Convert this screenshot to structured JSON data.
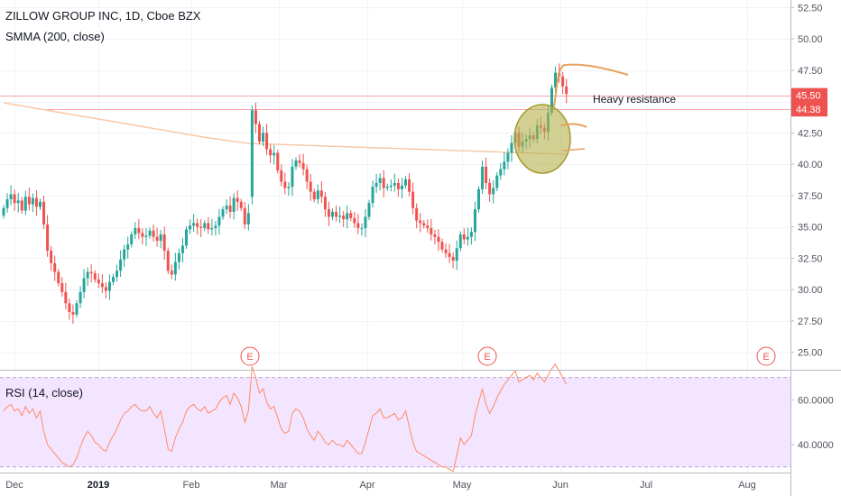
{
  "header": {
    "symbol_title": "ZILLOW GROUP INC, 1D, Cboe BZX",
    "indicator_label": "SMMA (200, close)",
    "rsi_label": "RSI (14, close)"
  },
  "colors": {
    "up": "#26a69a",
    "down": "#ef5350",
    "smma": "#f7c9a8",
    "resistance": "#f5a3a6",
    "rsi_line": "#ff8a65",
    "rsi_band": "#f3e5ff",
    "price_tag_upper": "#ef5350",
    "price_tag_lower": "#ef5350",
    "drawing": "#e8a25c",
    "highlight_circle": "#b5b04d",
    "earnings": "#f05350"
  },
  "chart_data": [
    {
      "type": "candlestick",
      "title": "ZILLOW GROUP INC, 1D, Cboe BZX",
      "ylim": [
        23.6,
        53.1
      ],
      "y_ticks": [
        "52.50",
        "50.00",
        "47.50",
        "45.00",
        "42.50",
        "40.00",
        "37.50",
        "35.00",
        "32.50",
        "30.00",
        "27.50",
        "25.00"
      ],
      "x_ticks": [
        "Dec",
        "2019",
        "Feb",
        "Mar",
        "Apr",
        "May",
        "Jun",
        "Jul",
        "Aug"
      ],
      "price_tags": [
        "45.50",
        "44.38"
      ],
      "annotations": [
        "Heavy resistance"
      ],
      "earnings_markers": [
        "E",
        "E",
        "E"
      ],
      "series": [
        {
          "name": "price",
          "close": [
            36.5,
            37.2,
            37.6,
            36.9,
            37.1,
            36.3,
            37.4,
            36.8,
            37.3,
            36.6,
            37.0,
            35.2,
            33.1,
            32.1,
            31.4,
            30.5,
            29.8,
            28.9,
            28.2,
            28.0,
            28.9,
            29.8,
            30.9,
            31.4,
            31.3,
            30.8,
            30.5,
            30.2,
            29.9,
            30.6,
            31.0,
            31.5,
            32.4,
            33.2,
            33.6,
            34.4,
            34.9,
            34.5,
            34.2,
            34.3,
            34.7,
            34.2,
            33.9,
            34.4,
            33.1,
            31.5,
            31.2,
            32.2,
            32.9,
            33.5,
            34.8,
            35.1,
            35.3,
            35.0,
            34.9,
            35.3,
            34.8,
            34.9,
            35.1,
            35.8,
            36.4,
            36.7,
            36.2,
            37.3,
            37.0,
            36.5,
            35.2,
            36.1,
            44.3,
            43.2,
            41.8,
            42.5,
            41.2,
            40.7,
            40.9,
            39.5,
            38.6,
            38.1,
            38.2,
            39.8,
            40.3,
            40.1,
            39.6,
            38.6,
            37.8,
            37.2,
            37.9,
            37.4,
            36.4,
            35.8,
            36.2,
            35.8,
            35.9,
            35.6,
            36.1,
            35.7,
            35.3,
            34.9,
            34.9,
            35.8,
            36.9,
            38.2,
            38.5,
            38.9,
            38.1,
            38.2,
            38.3,
            38.5,
            38.0,
            38.3,
            38.8,
            37.8,
            36.5,
            35.5,
            35.3,
            35.1,
            34.9,
            34.4,
            34.2,
            33.8,
            33.2,
            32.9,
            32.6,
            32.3,
            33.3,
            34.4,
            34.0,
            34.2,
            34.6,
            36.4,
            38.0,
            39.8,
            38.5,
            37.6,
            38.1,
            39.1,
            39.6,
            40.2,
            40.9,
            41.7,
            42.5,
            41.4,
            41.8,
            42.0,
            42.3,
            42.0,
            43.1,
            42.9,
            42.6,
            44.1,
            46.1,
            47.3,
            47.0,
            46.2,
            45.6
          ],
          "open": [
            35.9,
            36.5,
            37.2,
            37.6,
            36.9,
            37.1,
            36.3,
            37.4,
            36.8,
            37.3,
            36.6,
            37.0,
            35.2,
            33.1,
            32.1,
            31.4,
            30.5,
            29.8,
            28.9,
            28.2,
            28.0,
            28.9,
            29.8,
            30.9,
            31.4,
            31.3,
            30.8,
            30.5,
            30.2,
            29.9,
            30.6,
            31.0,
            31.5,
            32.4,
            33.2,
            33.6,
            34.4,
            34.9,
            34.5,
            34.2,
            34.3,
            34.7,
            34.2,
            33.9,
            34.4,
            33.1,
            31.5,
            31.2,
            32.2,
            32.9,
            33.5,
            34.8,
            35.1,
            35.3,
            35.0,
            34.9,
            35.3,
            34.8,
            34.9,
            35.1,
            35.8,
            36.4,
            36.7,
            36.2,
            37.3,
            37.0,
            36.5,
            35.2,
            37.4,
            44.3,
            43.2,
            41.8,
            42.5,
            41.2,
            40.7,
            40.9,
            39.5,
            38.6,
            38.1,
            38.2,
            39.8,
            40.3,
            40.1,
            39.6,
            38.6,
            37.8,
            37.2,
            37.9,
            37.4,
            36.4,
            35.8,
            36.2,
            35.8,
            35.9,
            35.6,
            36.1,
            35.7,
            35.3,
            34.9,
            34.9,
            35.8,
            36.9,
            38.2,
            38.5,
            38.9,
            38.1,
            38.2,
            38.3,
            38.5,
            38.0,
            38.3,
            38.8,
            37.8,
            36.5,
            35.5,
            35.3,
            35.1,
            34.9,
            34.4,
            34.2,
            33.8,
            33.2,
            32.9,
            32.6,
            32.3,
            33.3,
            34.4,
            34.0,
            34.2,
            34.6,
            36.4,
            38.0,
            39.8,
            38.5,
            37.6,
            38.1,
            39.1,
            39.6,
            40.2,
            40.9,
            41.7,
            42.5,
            41.4,
            41.8,
            42.0,
            42.3,
            42.0,
            43.1,
            42.9,
            42.6,
            44.1,
            46.1,
            47.3,
            47.0,
            46.2
          ],
          "smma": [
            44.9,
            44.85,
            44.8,
            44.75,
            44.7,
            44.65,
            44.6,
            44.55,
            44.5,
            44.45,
            44.4,
            44.35,
            44.3,
            44.25,
            44.2,
            44.15,
            44.1,
            44.05,
            44.0,
            43.95,
            43.9,
            43.85,
            43.8,
            43.75,
            43.7,
            43.65,
            43.6,
            43.55,
            43.5,
            43.45,
            43.4,
            43.35,
            43.3,
            43.25,
            43.2,
            43.15,
            43.1,
            43.05,
            43.0,
            42.95,
            42.9,
            42.85,
            42.8,
            42.75,
            42.7,
            42.65,
            42.6,
            42.55,
            42.5,
            42.45,
            42.4,
            42.35,
            42.3,
            42.25,
            42.2,
            42.15,
            42.1,
            42.06,
            42.02,
            41.98,
            41.94,
            41.9,
            41.86,
            41.82,
            41.78,
            41.74,
            41.7,
            41.66,
            41.65,
            41.64,
            41.63,
            41.62,
            41.61,
            41.6,
            41.59,
            41.58,
            41.57,
            41.56,
            41.55,
            41.54,
            41.53,
            41.52,
            41.51,
            41.5,
            41.49,
            41.48,
            41.47,
            41.46,
            41.45,
            41.44,
            41.43,
            41.42,
            41.41,
            41.4,
            41.39,
            41.38,
            41.37,
            41.36,
            41.35,
            41.34,
            41.33,
            41.32,
            41.31,
            41.3,
            41.29,
            41.28,
            41.27,
            41.26,
            41.25,
            41.24,
            41.23,
            41.22,
            41.21,
            41.2,
            41.19,
            41.18,
            41.17,
            41.16,
            41.15,
            41.14,
            41.13,
            41.12,
            41.11,
            41.1,
            41.09,
            41.08,
            41.07,
            41.06,
            41.05,
            41.04,
            41.03,
            41.02,
            41.01,
            41.0,
            40.99,
            40.98,
            40.97,
            40.96,
            40.95,
            40.94,
            40.93,
            40.92,
            40.91,
            40.9,
            40.89,
            40.88,
            40.87,
            40.86,
            40.85,
            40.84,
            40.83,
            40.82,
            40.81,
            40.8,
            40.79
          ]
        },
        {
          "name": "resistance",
          "values": [
            45.5,
            44.38
          ]
        }
      ]
    },
    {
      "type": "line",
      "title": "RSI (14, close)",
      "ylim": [
        27.5,
        73.5
      ],
      "y_ticks": [
        "60.0000",
        "40.0000"
      ],
      "bands": [
        30,
        70
      ],
      "series": [
        {
          "name": "rsi",
          "values": [
            55,
            57,
            58,
            55,
            56,
            53,
            57,
            54,
            56,
            52,
            55,
            46,
            40,
            38,
            36,
            34,
            32,
            31,
            30,
            31,
            34,
            39,
            43,
            46,
            44,
            41,
            40,
            38,
            37,
            41,
            44,
            47,
            51,
            54,
            55,
            57,
            58,
            56,
            55,
            55,
            57,
            54,
            52,
            55,
            47,
            38,
            37,
            43,
            47,
            50,
            55,
            57,
            58,
            56,
            55,
            57,
            54,
            55,
            56,
            59,
            61,
            62,
            58,
            63,
            61,
            57,
            50,
            55,
            75,
            70,
            63,
            65,
            59,
            56,
            57,
            52,
            47,
            45,
            46,
            54,
            56,
            55,
            52,
            47,
            44,
            42,
            46,
            44,
            41,
            40,
            42,
            40,
            40,
            39,
            42,
            40,
            38,
            36,
            36,
            41,
            47,
            53,
            54,
            56,
            52,
            52,
            53,
            54,
            51,
            52,
            55,
            48,
            41,
            37,
            36,
            35,
            34,
            33,
            32,
            31,
            30,
            30,
            29,
            28,
            35,
            43,
            40,
            42,
            44,
            53,
            59,
            65,
            58,
            54,
            57,
            61,
            64,
            67,
            69,
            71,
            73,
            68,
            69,
            70,
            71,
            69,
            72,
            70,
            68,
            71,
            74,
            76,
            73,
            70,
            67
          ]
        }
      ]
    }
  ]
}
